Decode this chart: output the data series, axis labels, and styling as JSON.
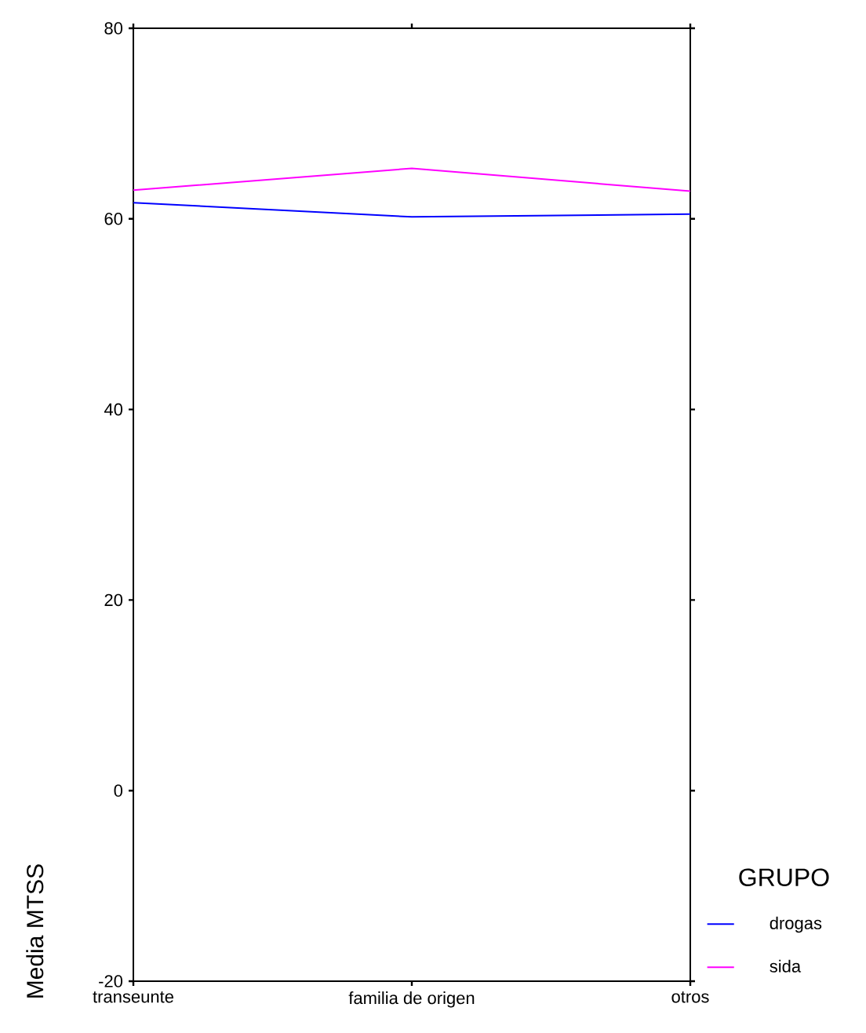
{
  "chart_data": {
    "type": "line",
    "ylabel": "Media MTSS",
    "legend_title": "GRUPO",
    "categories": [
      "transeunte",
      "familia de origen",
      "otros"
    ],
    "ylim": [
      -20,
      80
    ],
    "yticks": [
      -20,
      0,
      20,
      40,
      60,
      80
    ],
    "legend": "right",
    "series": [
      {
        "name": "drogas",
        "color": "#0000ff",
        "values": [
          61.7,
          60.2,
          60.5
        ]
      },
      {
        "name": "sida",
        "color": "#ff00ff",
        "values": [
          63.0,
          65.3,
          62.9
        ]
      }
    ]
  }
}
